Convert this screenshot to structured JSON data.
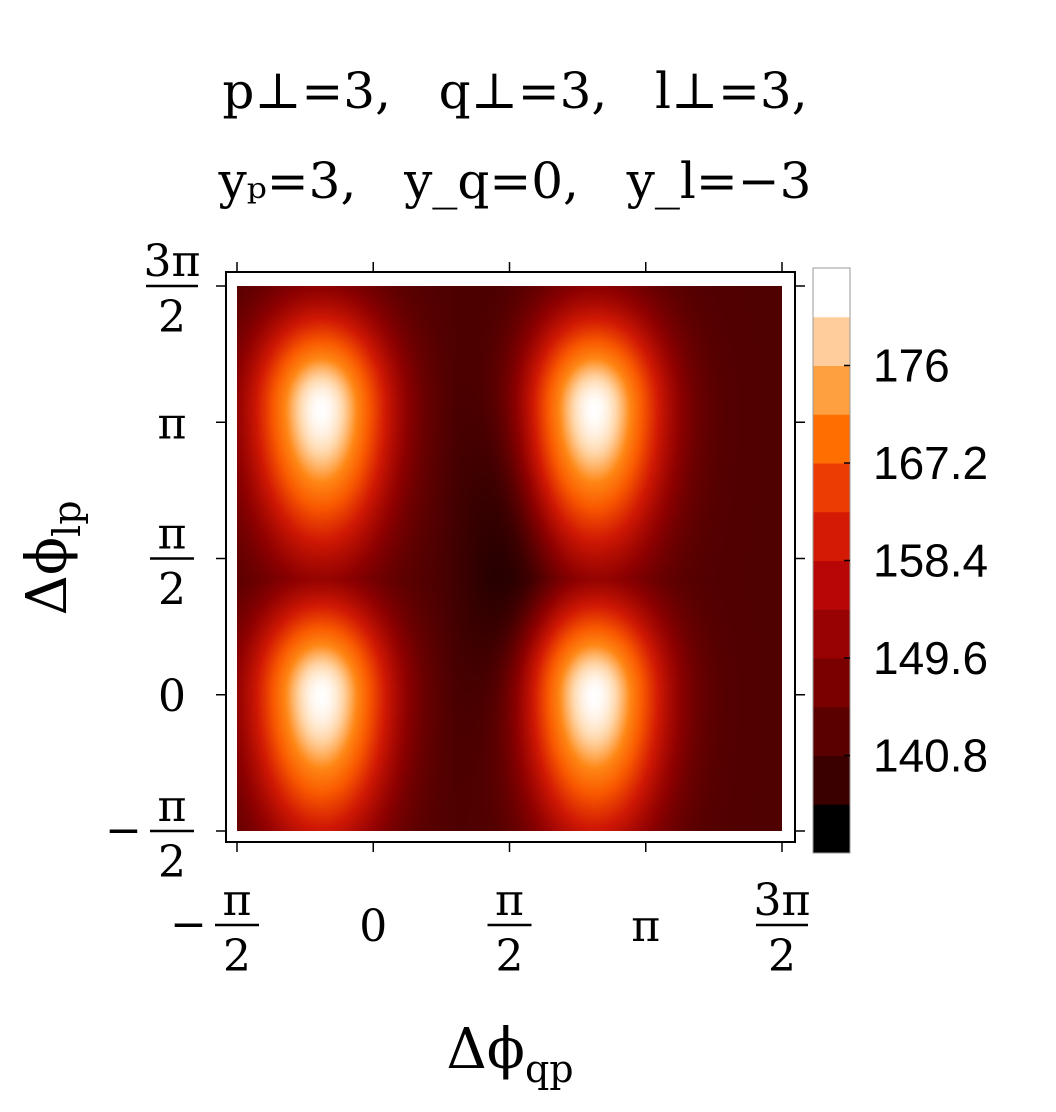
{
  "chart_data": {
    "type": "heatmap",
    "title_lines": [
      "p⊥=3,   q⊥=3,   l⊥=3,",
      "yₚ=3,   y_q=0,   y_l=−3"
    ],
    "xlabel": "Δϕ_qp",
    "ylabel": "Δϕ_lp",
    "x_range": [
      -1.5708,
      4.7124
    ],
    "y_range": [
      -1.5708,
      4.7124
    ],
    "x_ticks": [
      {
        "value": -1.5708,
        "label": "−π/2"
      },
      {
        "value": 0,
        "label": "0"
      },
      {
        "value": 1.5708,
        "label": "π/2"
      },
      {
        "value": 3.1416,
        "label": "π"
      },
      {
        "value": 4.7124,
        "label": "3π/2"
      }
    ],
    "y_ticks": [
      {
        "value": -1.5708,
        "label": "−π/2"
      },
      {
        "value": 0,
        "label": "0"
      },
      {
        "value": 1.5708,
        "label": "π/2"
      },
      {
        "value": 3.1416,
        "label": "π"
      },
      {
        "value": 4.7124,
        "label": "3π/2"
      }
    ],
    "colorbar": {
      "tick_values": [
        140.8,
        149.6,
        158.4,
        167.2,
        176
      ],
      "tick_labels": [
        "140.8",
        "149.6",
        "158.4",
        "167.2",
        "176"
      ],
      "levels": [
        132,
        136.4,
        140.8,
        145.2,
        149.6,
        154,
        158.4,
        162.8,
        167.2,
        171.6,
        176,
        180.4
      ],
      "colors": [
        "#000000",
        "#3a0000",
        "#5a0000",
        "#7a0000",
        "#980202",
        "#b80606",
        "#d41a04",
        "#ec3c04",
        "#ff6e00",
        "#ffa040",
        "#ffcd9c",
        "#ffffff"
      ]
    },
    "value_range": [
      132,
      180
    ],
    "peaks": [
      {
        "x": -0.6,
        "y": 3.3,
        "value": 180
      },
      {
        "x": -0.6,
        "y": 0,
        "value": 180
      },
      {
        "x": 2.55,
        "y": 3.3,
        "value": 180
      },
      {
        "x": 2.55,
        "y": 0,
        "value": 180
      }
    ],
    "minimum": {
      "x": 1.5708,
      "y": 1.5708,
      "value": 132
    },
    "grid": false,
    "legend": "colorbar-right"
  }
}
